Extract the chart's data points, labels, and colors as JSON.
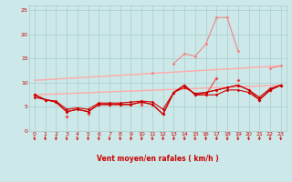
{
  "x": [
    0,
    1,
    2,
    3,
    4,
    5,
    6,
    7,
    8,
    9,
    10,
    11,
    12,
    13,
    14,
    15,
    16,
    17,
    18,
    19,
    20,
    21,
    22,
    23
  ],
  "line_rafales_high": [
    null,
    null,
    null,
    null,
    null,
    null,
    null,
    null,
    null,
    null,
    null,
    12.0,
    null,
    14.0,
    16.0,
    15.5,
    18.0,
    23.5,
    23.5,
    16.5,
    null,
    null,
    13.0,
    13.5
  ],
  "line_moyen_noisy": [
    7.5,
    6.5,
    null,
    3.0,
    null,
    3.5,
    null,
    null,
    null,
    null,
    5.5,
    null,
    3.5,
    null,
    null,
    7.5,
    7.5,
    11.0,
    null,
    10.5,
    null,
    6.5,
    8.5,
    9.5
  ],
  "line_mean1": [
    7.0,
    6.5,
    6.0,
    4.0,
    4.5,
    4.0,
    5.5,
    5.5,
    5.5,
    5.5,
    6.0,
    5.5,
    3.5,
    8.0,
    9.5,
    7.5,
    7.5,
    7.5,
    8.5,
    8.5,
    8.0,
    6.5,
    8.5,
    9.5
  ],
  "line_mean2": [
    7.5,
    6.5,
    6.0,
    4.0,
    4.5,
    4.0,
    5.5,
    5.5,
    5.5,
    5.5,
    6.0,
    5.5,
    3.5,
    8.0,
    9.5,
    7.5,
    8.0,
    8.5,
    9.0,
    9.5,
    8.5,
    6.5,
    8.5,
    9.5
  ],
  "line_mean3": [
    7.5,
    6.5,
    6.2,
    4.5,
    4.8,
    4.5,
    5.8,
    5.8,
    5.8,
    6.0,
    6.2,
    6.0,
    4.5,
    8.0,
    9.0,
    7.8,
    8.0,
    8.5,
    9.0,
    9.5,
    8.5,
    7.0,
    8.8,
    9.5
  ],
  "diag_upper_start": 10.5,
  "diag_upper_end": 13.5,
  "diag_lower_start": 7.5,
  "diag_lower_end": 9.5,
  "background_color": "#cce8e8",
  "grid_color": "#aacccc",
  "color_dark_red": "#cc0000",
  "color_medium_red": "#ee4444",
  "color_light_red": "#ee8888",
  "color_very_light": "#ffaaaa",
  "xlabel": "Vent moyen/en rafales ( km/h )",
  "ylim": [
    0,
    26
  ],
  "xlim": [
    -0.5,
    23.5
  ],
  "yticks": [
    0,
    5,
    10,
    15,
    20,
    25
  ],
  "xticks": [
    0,
    1,
    2,
    3,
    4,
    5,
    6,
    7,
    8,
    9,
    10,
    11,
    12,
    13,
    14,
    15,
    16,
    17,
    18,
    19,
    20,
    21,
    22,
    23
  ]
}
